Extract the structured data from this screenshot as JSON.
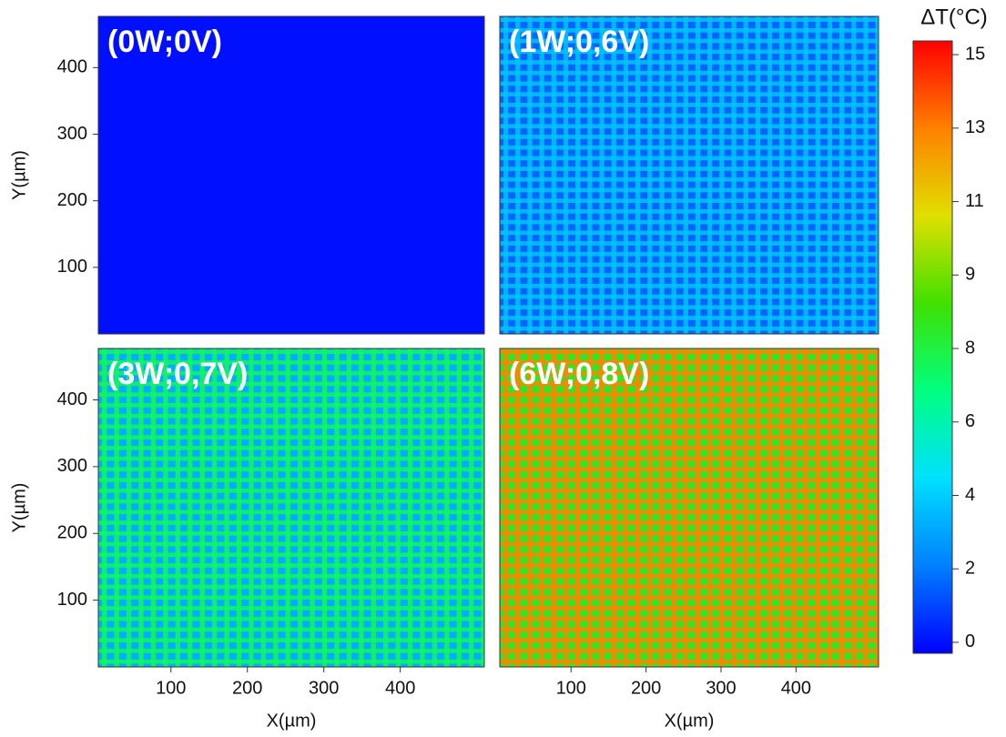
{
  "chart_data": [
    {
      "type": "heatmap",
      "title": "(0W;0V)",
      "xlim": [
        5,
        510
      ],
      "ylim": [
        0,
        477
      ],
      "yticks": [
        100,
        200,
        300,
        400
      ],
      "ylabel": "Y(µm)",
      "period": 16,
      "background": 0,
      "line": 0
    },
    {
      "type": "heatmap",
      "title": "(1W;0,6V)",
      "xlim": [
        5,
        510
      ],
      "ylim": [
        0,
        477
      ],
      "period": 16,
      "background": 1.5,
      "line": 3.5
    },
    {
      "type": "heatmap",
      "title": "(3W;0,7V)",
      "xlim": [
        5,
        510
      ],
      "ylim": [
        0,
        477
      ],
      "xticks": [
        100,
        200,
        300,
        400
      ],
      "yticks": [
        100,
        200,
        300,
        400
      ],
      "xlabel": "X(µm)",
      "ylabel": "Y(µm)",
      "period": 16,
      "background": 3,
      "line": 7
    },
    {
      "type": "heatmap",
      "title": "(6W;0,8V)",
      "xlim": [
        5,
        510
      ],
      "ylim": [
        0,
        477
      ],
      "xticks": [
        100,
        200,
        300,
        400
      ],
      "xlabel": "X(µm)",
      "period": 16,
      "background": 8,
      "line": 13
    }
  ],
  "colorbar": {
    "title": "ΔT(°C)",
    "clim": [
      -0.28,
      15.35
    ],
    "colors": [
      "#0000ff",
      "#0080ff",
      "#00e0ff",
      "#00ff80",
      "#40e000",
      "#e0e000",
      "#ff8000",
      "#ff0000"
    ],
    "ticks": [
      {
        "value": 15,
        "label": "15"
      },
      {
        "value": 13.125,
        "label": "13"
      },
      {
        "value": 11.25,
        "label": "11"
      },
      {
        "value": 9.375,
        "label": "9"
      },
      {
        "value": 7.5,
        "label": "8"
      },
      {
        "value": 5.625,
        "label": "6"
      },
      {
        "value": 3.75,
        "label": "4"
      },
      {
        "value": 1.875,
        "label": "2"
      },
      {
        "value": 0,
        "label": "0"
      }
    ]
  }
}
